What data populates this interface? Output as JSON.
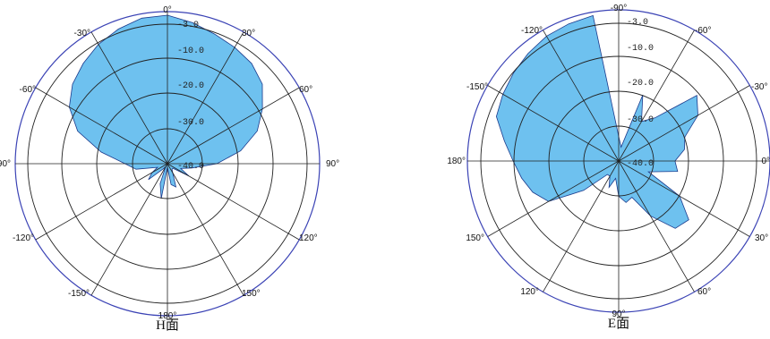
{
  "chart_data": [
    {
      "type": "polar-area",
      "title": "H面",
      "radial_ticks": [
        "-3.0",
        "-10.0",
        "-20.0",
        "-30.0",
        "-40.0"
      ],
      "angle_labels": [
        "0°",
        "30°",
        "60°",
        "90°",
        "120°",
        "150°",
        "180°",
        "-150°",
        "-120°",
        "-90°",
        "-60°",
        "-30°"
      ],
      "rmin_db": -43,
      "colors": {
        "fill": "#6ec1ef",
        "stroke": "#1b3a8c",
        "outer_ring": "#3b43b5"
      },
      "series": [
        {
          "values_angle_deg": [
            0,
            10,
            20,
            30,
            40,
            50,
            60,
            70,
            80,
            90,
            100,
            110,
            120,
            130,
            140,
            150,
            160,
            170,
            180,
            190,
            200,
            210,
            220,
            230,
            240,
            250,
            260,
            270,
            280,
            290,
            300,
            310,
            320,
            330,
            340,
            350
          ],
          "values_db": [
            -1,
            -2.5,
            -4,
            -5,
            -6,
            -8,
            -12,
            -16,
            -22,
            -29,
            -36,
            -39,
            -36,
            -41,
            -41,
            -40,
            -36,
            -37,
            -42,
            -33,
            -37,
            -42,
            -41,
            -36,
            -38,
            -40,
            -34,
            -31,
            -24,
            -16,
            -11,
            -8,
            -6,
            -4,
            -2.5,
            -1.2
          ]
        }
      ]
    },
    {
      "type": "polar-area",
      "title": "E面",
      "radial_ticks": [
        "-3.0",
        "-10.0",
        "-20.0",
        "-30.0",
        "-40.0"
      ],
      "angle_labels": [
        "-90°",
        "-60°",
        "-30°",
        "0°",
        "30°",
        "60°",
        "90°",
        "120°",
        "150°",
        "180°",
        "-150°",
        "-120°"
      ],
      "rmin_db": -43,
      "colors": {
        "fill": "#6ec1ef",
        "stroke": "#1b3a8c",
        "outer_ring": "#3b43b5"
      },
      "series": [
        {
          "values_angle_deg": [
            0,
            10,
            20,
            30,
            40,
            50,
            60,
            70,
            80,
            90,
            100,
            110,
            120,
            130,
            140,
            150,
            160,
            170,
            180,
            190,
            200,
            210,
            220,
            230,
            240,
            250,
            260,
            270,
            280,
            290,
            300,
            310,
            320,
            330,
            340,
            350
          ],
          "values_db": [
            -36,
            -39,
            -23,
            -30,
            -27,
            -14,
            -17,
            -23,
            -24,
            -27,
            -26,
            -34,
            -23,
            -17,
            -18,
            -25,
            -32,
            -31,
            -33,
            -38,
            -35,
            -38,
            -38,
            -30,
            -20,
            -17,
            -15,
            -13,
            -10,
            -6,
            -5,
            -4,
            -3,
            -2,
            -1.5,
            -1
          ]
        }
      ]
    }
  ]
}
